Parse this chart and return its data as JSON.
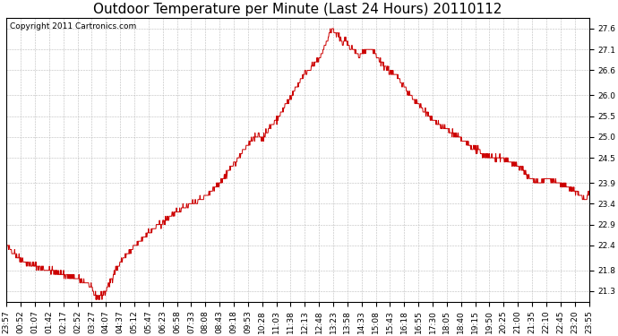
{
  "title": "Outdoor Temperature per Minute (Last 24 Hours) 20110112",
  "copyright_text": "Copyright 2011 Cartronics.com",
  "line_color": "#cc0000",
  "background_color": "#ffffff",
  "plot_bg_color": "#ffffff",
  "grid_color": "#bbbbbb",
  "yticks": [
    21.3,
    21.8,
    22.4,
    22.9,
    23.4,
    23.9,
    24.5,
    25.0,
    25.5,
    26.0,
    26.6,
    27.1,
    27.6
  ],
  "ylim": [
    21.05,
    27.85
  ],
  "xtick_labels": [
    "23:57",
    "00:52",
    "01:07",
    "01:42",
    "02:17",
    "02:52",
    "03:27",
    "04:07",
    "04:37",
    "05:12",
    "05:47",
    "06:23",
    "06:58",
    "07:33",
    "08:08",
    "08:43",
    "09:18",
    "09:53",
    "10:28",
    "11:03",
    "11:38",
    "12:13",
    "12:48",
    "13:23",
    "13:58",
    "14:33",
    "15:08",
    "15:43",
    "16:18",
    "16:55",
    "17:30",
    "18:05",
    "18:40",
    "19:15",
    "19:50",
    "20:25",
    "21:00",
    "21:35",
    "22:10",
    "22:45",
    "23:20",
    "23:55"
  ],
  "title_fontsize": 11,
  "tick_fontsize": 6.5,
  "copyright_fontsize": 6.5
}
